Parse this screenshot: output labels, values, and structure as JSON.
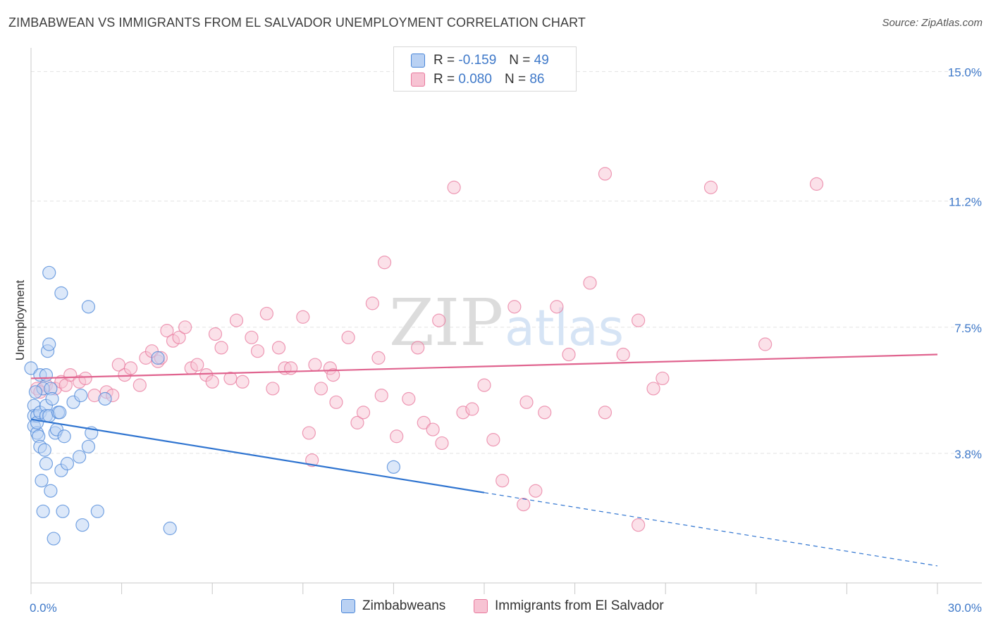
{
  "title": "ZIMBABWEAN VS IMMIGRANTS FROM EL SALVADOR UNEMPLOYMENT CORRELATION CHART",
  "source": "Source: ZipAtlas.com",
  "watermark": {
    "zip": "ZIP",
    "atlas": "atlas"
  },
  "colors": {
    "blue": "#4a86d8",
    "blue_fill": "#b9d1f3",
    "blue_line": "#2f74d0",
    "pink": "#e8799d",
    "pink_fill": "#f7c3d3",
    "pink_line": "#e0648f",
    "grid": "#e2e2e2",
    "tick_text": "#3f79c9"
  },
  "legend": {
    "rows": [
      {
        "r_label": "R =",
        "r_value": "-0.159",
        "n_label": "N =",
        "n_value": "49",
        "series": "blue"
      },
      {
        "r_label": "R =",
        "r_value": "0.080",
        "n_label": "N =",
        "n_value": "86",
        "series": "pink"
      }
    ]
  },
  "chart_data": {
    "type": "scatter",
    "title": "ZIMBABWEAN VS IMMIGRANTS FROM EL SALVADOR UNEMPLOYMENT CORRELATION CHART",
    "xlabel": "",
    "ylabel": "Unemployment",
    "xlim": [
      0,
      30
    ],
    "ylim": [
      0,
      15.9
    ],
    "x_tick_labels": [
      "0.0%",
      "30.0%"
    ],
    "y_ticks": [
      3.8,
      7.5,
      11.2,
      15.0
    ],
    "y_tick_labels": [
      "3.8%",
      "7.5%",
      "11.2%",
      "15.0%"
    ],
    "grid": true,
    "legend_position": "top-center",
    "series": [
      {
        "name": "Zimbabweans",
        "color": "blue",
        "trend": {
          "x": [
            0,
            15
          ],
          "y": [
            4.8,
            2.65
          ],
          "dashed_extension": {
            "x": [
              15,
              30
            ],
            "y": [
              2.65,
              0.5
            ]
          }
        },
        "points": [
          [
            0.0,
            6.3
          ],
          [
            0.1,
            5.2
          ],
          [
            0.1,
            4.9
          ],
          [
            0.1,
            4.6
          ],
          [
            0.2,
            4.4
          ],
          [
            0.2,
            4.9
          ],
          [
            0.2,
            4.7
          ],
          [
            0.25,
            4.3
          ],
          [
            0.3,
            6.1
          ],
          [
            0.3,
            4.0
          ],
          [
            0.3,
            5.0
          ],
          [
            0.35,
            3.0
          ],
          [
            0.4,
            5.7
          ],
          [
            0.4,
            2.1
          ],
          [
            0.45,
            3.9
          ],
          [
            0.5,
            6.1
          ],
          [
            0.5,
            5.2
          ],
          [
            0.5,
            4.9
          ],
          [
            0.5,
            3.5
          ],
          [
            0.55,
            6.8
          ],
          [
            0.6,
            7.0
          ],
          [
            0.6,
            9.1
          ],
          [
            0.6,
            4.9
          ],
          [
            0.65,
            5.7
          ],
          [
            0.65,
            2.7
          ],
          [
            0.7,
            5.4
          ],
          [
            0.75,
            1.3
          ],
          [
            0.8,
            4.4
          ],
          [
            0.85,
            4.5
          ],
          [
            0.9,
            5.0
          ],
          [
            0.95,
            5.0
          ],
          [
            1.0,
            8.5
          ],
          [
            1.0,
            3.3
          ],
          [
            1.05,
            2.1
          ],
          [
            1.1,
            4.3
          ],
          [
            1.2,
            3.5
          ],
          [
            1.4,
            5.3
          ],
          [
            1.6,
            3.7
          ],
          [
            1.65,
            5.5
          ],
          [
            1.7,
            1.7
          ],
          [
            1.9,
            4.0
          ],
          [
            1.9,
            8.1
          ],
          [
            2.0,
            4.4
          ],
          [
            2.2,
            2.1
          ],
          [
            2.45,
            5.4
          ],
          [
            4.2,
            6.6
          ],
          [
            4.6,
            1.6
          ],
          [
            12.0,
            3.4
          ],
          [
            0.15,
            5.6
          ]
        ]
      },
      {
        "name": "Immigrants from El Salvador",
        "color": "pink",
        "trend": {
          "x": [
            0,
            30
          ],
          "y": [
            6.0,
            6.7
          ]
        },
        "points": [
          [
            0.2,
            5.7
          ],
          [
            0.5,
            5.8
          ],
          [
            0.8,
            5.7
          ],
          [
            1.0,
            5.9
          ],
          [
            1.15,
            5.8
          ],
          [
            1.3,
            6.1
          ],
          [
            1.6,
            5.9
          ],
          [
            1.8,
            6.0
          ],
          [
            2.1,
            5.5
          ],
          [
            2.5,
            5.6
          ],
          [
            2.7,
            5.5
          ],
          [
            2.9,
            6.4
          ],
          [
            3.1,
            6.1
          ],
          [
            3.3,
            6.3
          ],
          [
            3.6,
            5.8
          ],
          [
            3.8,
            6.6
          ],
          [
            4.0,
            6.8
          ],
          [
            4.2,
            6.5
          ],
          [
            4.3,
            6.6
          ],
          [
            4.5,
            7.4
          ],
          [
            4.7,
            7.1
          ],
          [
            4.9,
            7.2
          ],
          [
            5.1,
            7.5
          ],
          [
            5.3,
            6.3
          ],
          [
            5.5,
            6.4
          ],
          [
            5.8,
            6.1
          ],
          [
            6.0,
            5.9
          ],
          [
            6.1,
            7.3
          ],
          [
            6.3,
            6.9
          ],
          [
            6.6,
            6.0
          ],
          [
            6.8,
            7.7
          ],
          [
            7.0,
            5.9
          ],
          [
            7.3,
            7.2
          ],
          [
            7.5,
            6.8
          ],
          [
            7.8,
            7.9
          ],
          [
            8.0,
            5.7
          ],
          [
            8.2,
            6.9
          ],
          [
            8.4,
            6.3
          ],
          [
            8.6,
            6.3
          ],
          [
            9.0,
            7.8
          ],
          [
            9.2,
            4.4
          ],
          [
            9.3,
            3.6
          ],
          [
            9.4,
            6.4
          ],
          [
            9.6,
            5.7
          ],
          [
            9.9,
            6.3
          ],
          [
            10.0,
            6.1
          ],
          [
            10.1,
            5.3
          ],
          [
            10.5,
            7.2
          ],
          [
            10.8,
            4.7
          ],
          [
            11.0,
            5.0
          ],
          [
            11.3,
            8.2
          ],
          [
            11.5,
            6.6
          ],
          [
            11.6,
            5.5
          ],
          [
            11.7,
            9.4
          ],
          [
            12.1,
            4.3
          ],
          [
            12.5,
            5.4
          ],
          [
            12.8,
            6.9
          ],
          [
            13.0,
            4.7
          ],
          [
            13.3,
            4.5
          ],
          [
            13.5,
            7.7
          ],
          [
            13.6,
            4.1
          ],
          [
            14.0,
            11.6
          ],
          [
            14.3,
            5.0
          ],
          [
            14.6,
            5.1
          ],
          [
            15.0,
            5.8
          ],
          [
            15.3,
            4.2
          ],
          [
            15.6,
            3.0
          ],
          [
            16.0,
            8.1
          ],
          [
            16.3,
            2.3
          ],
          [
            16.4,
            5.3
          ],
          [
            16.7,
            2.7
          ],
          [
            17.0,
            5.0
          ],
          [
            17.4,
            8.1
          ],
          [
            17.8,
            6.7
          ],
          [
            18.5,
            8.8
          ],
          [
            19.0,
            12.0
          ],
          [
            19.0,
            5.0
          ],
          [
            19.6,
            6.7
          ],
          [
            20.1,
            7.7
          ],
          [
            20.1,
            1.7
          ],
          [
            20.6,
            5.7
          ],
          [
            20.9,
            6.0
          ],
          [
            22.5,
            11.6
          ],
          [
            24.3,
            7.0
          ],
          [
            26.0,
            11.7
          ],
          [
            0.3,
            5.6
          ]
        ]
      }
    ]
  },
  "bottom_legend": [
    "Zimbabweans",
    "Immigrants from El Salvador"
  ]
}
